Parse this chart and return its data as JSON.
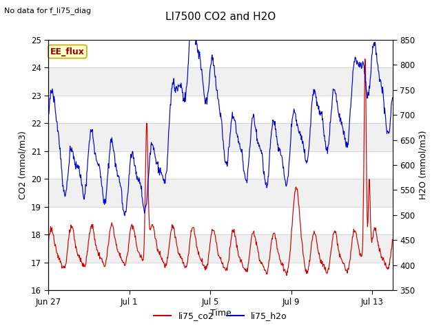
{
  "title": "LI7500 CO2 and H2O",
  "top_left_text": "No data for f_li75_diag",
  "xlabel": "Time",
  "ylabel_left": "CO2 (mmol/m3)",
  "ylabel_right": "H2O (mmol/m3)",
  "ylim_left": [
    16.0,
    25.0
  ],
  "ylim_right": [
    350,
    850
  ],
  "yticks_left": [
    16.0,
    17.0,
    18.0,
    19.0,
    20.0,
    21.0,
    22.0,
    23.0,
    24.0,
    25.0
  ],
  "yticks_right": [
    350,
    400,
    450,
    500,
    550,
    600,
    650,
    700,
    750,
    800,
    850
  ],
  "xtick_labels": [
    "Jun 27",
    "Jul 1",
    "Jul 5",
    "Jul 9",
    "Jul 13"
  ],
  "xtick_positions": [
    0,
    4,
    8,
    12,
    16
  ],
  "legend_labels": [
    "li75_co2",
    "li75_h2o"
  ],
  "co2_color": "#cc0000",
  "h2o_color": "#0000cc",
  "bg_color": "#ffffff",
  "plot_bg_light": "#f0f0f0",
  "plot_bg_dark": "#e0e0e0",
  "tag_text": "EE_flux",
  "tag_bg": "#ffffcc",
  "tag_border": "#ccaa00",
  "tag_text_color": "#990000",
  "total_days": 17,
  "n_points": 800
}
